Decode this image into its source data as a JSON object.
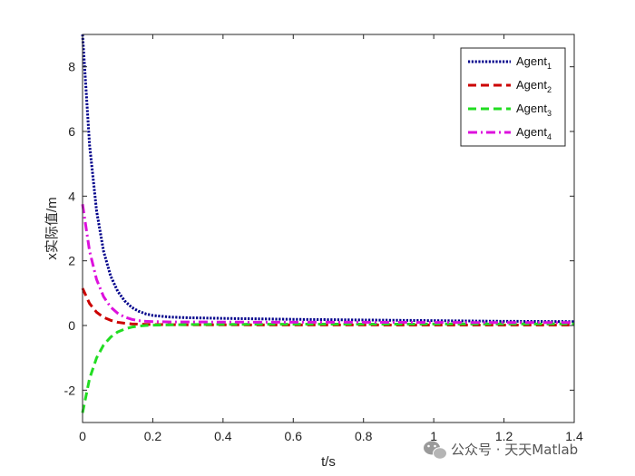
{
  "watermark": {
    "text": "公众号 · 天天Matlab",
    "icon": "wechat-icon"
  },
  "chart_data": {
    "type": "line",
    "xlabel": "t/s",
    "ylabel": "x实际值/m",
    "xlim": [
      0,
      1.4
    ],
    "ylim": [
      -3,
      9
    ],
    "xticks": [
      0,
      0.2,
      0.4,
      0.6,
      0.8,
      1,
      1.2,
      1.4
    ],
    "xtick_labels": [
      "0",
      "0.2",
      "0.4",
      "0.6",
      "0.8",
      "1",
      "1.2",
      "1.4"
    ],
    "yticks": [
      -2,
      0,
      2,
      4,
      6,
      8
    ],
    "ytick_labels": [
      "-2",
      "0",
      "2",
      "4",
      "6",
      "8"
    ],
    "grid": false,
    "legend_position": "top-right",
    "x": [
      0,
      0.02,
      0.04,
      0.06,
      0.08,
      0.1,
      0.12,
      0.14,
      0.16,
      0.18,
      0.2,
      0.25,
      0.3,
      0.4,
      0.6,
      0.8,
      1.0,
      1.2,
      1.4
    ],
    "series": [
      {
        "name": "Agent",
        "sub": "1",
        "color": "#00008b",
        "dash": "dotted",
        "values": [
          9.0,
          5.58,
          3.54,
          2.29,
          1.53,
          1.06,
          0.76,
          0.56,
          0.44,
          0.36,
          0.31,
          0.26,
          0.24,
          0.22,
          0.19,
          0.17,
          0.15,
          0.13,
          0.12
        ]
      },
      {
        "name": "Agent",
        "sub": "2",
        "color": "#cc0000",
        "dash": "dashed",
        "values": [
          1.15,
          0.68,
          0.41,
          0.25,
          0.16,
          0.1,
          0.07,
          0.05,
          0.04,
          0.035,
          0.03,
          0.025,
          0.022,
          0.02,
          0.018,
          0.016,
          0.015,
          0.014,
          0.013
        ]
      },
      {
        "name": "Agent",
        "sub": "3",
        "color": "#22dd22",
        "dash": "dashed",
        "values": [
          -2.7,
          -1.64,
          -1.0,
          -0.6,
          -0.36,
          -0.2,
          -0.11,
          -0.05,
          -0.02,
          0.0,
          0.01,
          0.02,
          0.03,
          0.035,
          0.04,
          0.042,
          0.044,
          0.046,
          0.048
        ]
      },
      {
        "name": "Agent",
        "sub": "4",
        "color": "#dd11dd",
        "dash": "dashdot",
        "values": [
          3.75,
          2.3,
          1.42,
          0.89,
          0.57,
          0.38,
          0.26,
          0.19,
          0.15,
          0.13,
          0.12,
          0.11,
          0.11,
          0.105,
          0.1,
          0.1,
          0.095,
          0.09,
          0.09
        ]
      }
    ]
  }
}
